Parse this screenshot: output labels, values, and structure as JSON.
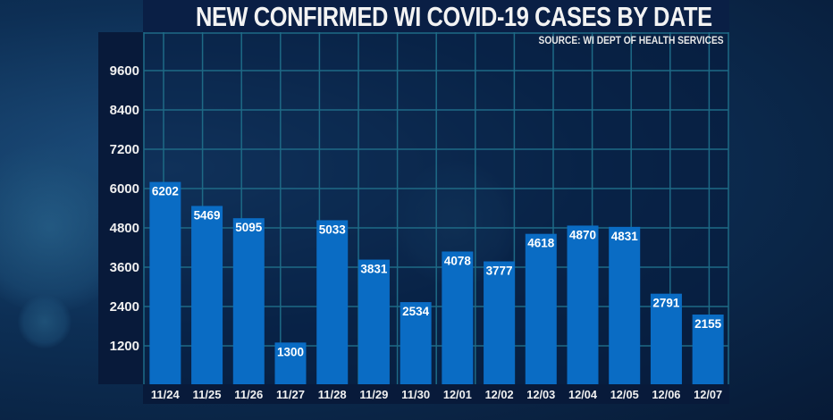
{
  "chart_data": {
    "type": "bar",
    "title": "NEW CONFIRMED WI COVID-19 CASES BY DATE",
    "subtitle": "SOURCE: WI DEPT OF HEALTH SERVICES",
    "categories": [
      "11/24",
      "11/25",
      "11/26",
      "11/27",
      "11/28",
      "11/29",
      "11/30",
      "12/01",
      "12/02",
      "12/03",
      "12/04",
      "12/05",
      "12/06",
      "12/07"
    ],
    "values": [
      6202,
      5469,
      5095,
      1300,
      5033,
      3831,
      2534,
      4078,
      3777,
      4618,
      4870,
      4831,
      2791,
      2155
    ],
    "yticks": [
      1200,
      2400,
      3600,
      4800,
      6000,
      7200,
      8400,
      9600
    ],
    "ylim": [
      0,
      10000
    ],
    "grid": true,
    "data_labels": true,
    "bar_color": "#0a6cc4",
    "grid_color": "#1e6a86"
  }
}
